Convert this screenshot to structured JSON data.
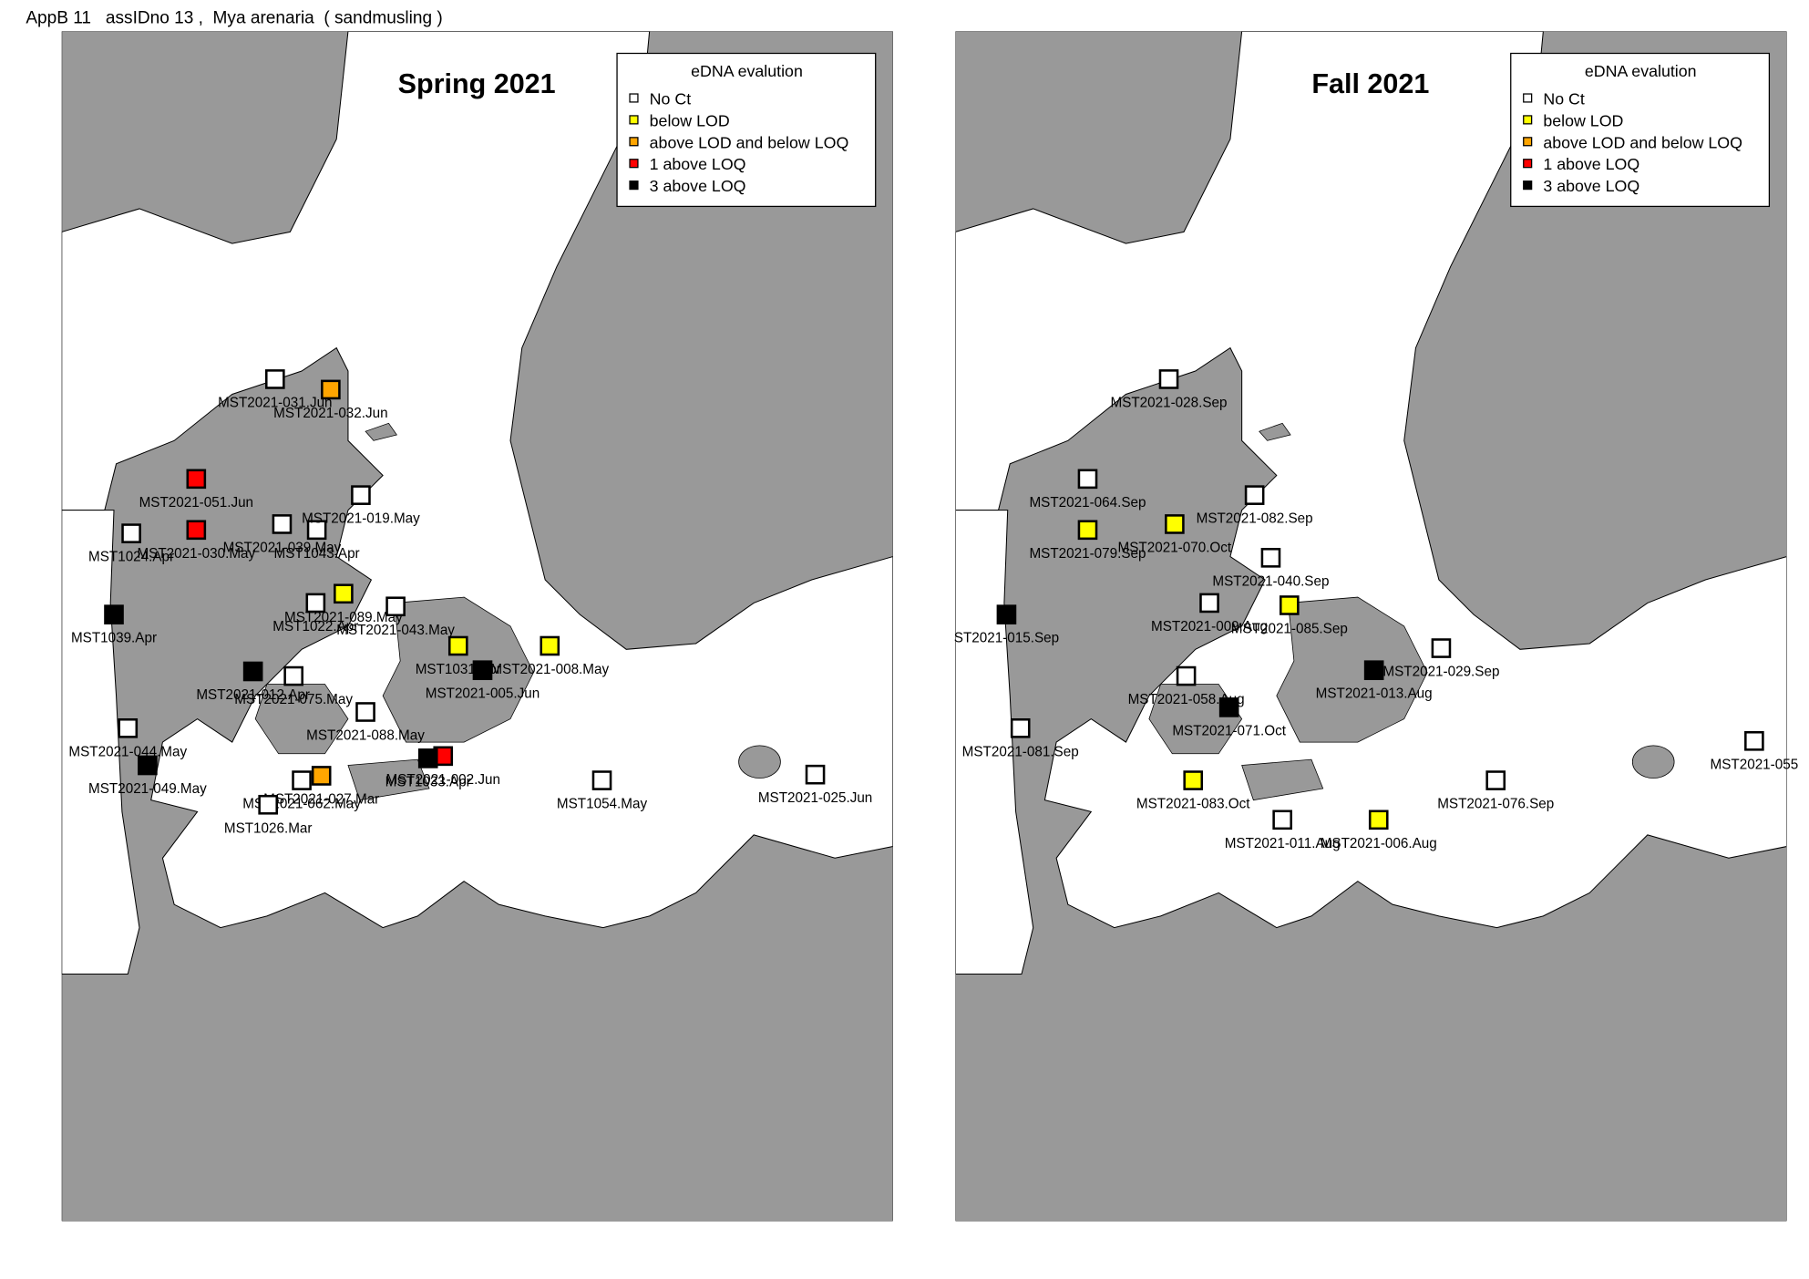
{
  "header": {
    "title": "AppB 11   assIDno 13 ,  Mya arenaria  ( sandmusling )"
  },
  "legend": {
    "title": "eDNA evalution",
    "items": [
      {
        "label": "No Ct",
        "color": "#ffffff"
      },
      {
        "label": "below LOD",
        "color": "#ffff00"
      },
      {
        "label": "above LOD and below LOQ",
        "color": "#ffa500"
      },
      {
        "label": "1 above LOQ",
        "color": "#ff0000"
      },
      {
        "label": "3 above LOQ",
        "color": "#000000"
      }
    ]
  },
  "panels": [
    {
      "title": "Spring 2021",
      "stations": [
        {
          "label": "MST2021-031.Jun",
          "class": "No Ct"
        },
        {
          "label": "MST2021-032.Jun",
          "class": "above LOD and below LOQ"
        },
        {
          "label": "MST2021-051.Jun",
          "class": "1 above LOQ"
        },
        {
          "label": "MST2021-030.May",
          "class": "1 above LOQ"
        },
        {
          "label": "MST1024.Apr",
          "class": "No Ct"
        },
        {
          "label": "MST2021-039.May",
          "class": "No Ct"
        },
        {
          "label": "MST1043.Apr",
          "class": "No Ct"
        },
        {
          "label": "MST2021-019.May",
          "class": "No Ct"
        },
        {
          "label": "MST1039.Apr",
          "class": "3 above LOQ"
        },
        {
          "label": "MST1022.Apr",
          "class": "No Ct"
        },
        {
          "label": "MST2021-089.May",
          "class": "below LOD"
        },
        {
          "label": "MST2021-043.May",
          "class": "No Ct"
        },
        {
          "label": "MST1031.Apr",
          "class": "below LOD"
        },
        {
          "label": "MST2021-008.May",
          "class": "below LOD"
        },
        {
          "label": "MST2021-005.Jun",
          "class": "3 above LOQ"
        },
        {
          "label": "MST2021-012.Apr",
          "class": "3 above LOQ"
        },
        {
          "label": "MST2021-075.May",
          "class": "No Ct"
        },
        {
          "label": "MST2021-088.May",
          "class": "No Ct"
        },
        {
          "label": "MST2021-044.May",
          "class": "No Ct"
        },
        {
          "label": "MST2021-049.May",
          "class": "3 above LOQ"
        },
        {
          "label": "MST2021-002.Jun",
          "class": "1 above LOQ"
        },
        {
          "label": "MST1033.Apr",
          "class": "3 above LOQ"
        },
        {
          "label": "MST2021-027.Mar",
          "class": "above LOD and below LOQ"
        },
        {
          "label": "MST2021-062.May",
          "class": "No Ct"
        },
        {
          "label": "MST1026.Mar",
          "class": "No Ct"
        },
        {
          "label": "MST1054.May",
          "class": "No Ct"
        },
        {
          "label": "MST2021-025.Jun",
          "class": "No Ct"
        }
      ]
    },
    {
      "title": "Fall 2021",
      "stations": [
        {
          "label": "MST2021-028.Sep",
          "class": "No Ct"
        },
        {
          "label": "MST2021-064.Sep",
          "class": "No Ct"
        },
        {
          "label": "MST2021-082.Sep",
          "class": "No Ct"
        },
        {
          "label": "MST2021-079.Sep",
          "class": "below LOD"
        },
        {
          "label": "MST2021-070.Oct",
          "class": "below LOD"
        },
        {
          "label": "MST2021-040.Sep",
          "class": "No Ct"
        },
        {
          "label": "ST2021-015.Sep",
          "class": "3 above LOQ"
        },
        {
          "label": "MST2021-009.Aug",
          "class": "No Ct"
        },
        {
          "label": "MST2021-085.Sep",
          "class": "below LOD"
        },
        {
          "label": "MST2021-029.Sep",
          "class": "No Ct"
        },
        {
          "label": "MST2021-013.Aug",
          "class": "3 above LOQ"
        },
        {
          "label": "MST2021-058.Aug",
          "class": "No Ct"
        },
        {
          "label": "MST2021-071.Oct",
          "class": "3 above LOQ"
        },
        {
          "label": "MST2021-081.Sep",
          "class": "No Ct"
        },
        {
          "label": "MST2021-055",
          "class": "No Ct"
        },
        {
          "label": "MST2021-083.Oct",
          "class": "below LOD"
        },
        {
          "label": "MST2021-076.Sep",
          "class": "No Ct"
        },
        {
          "label": "MST2021-011.Aug",
          "class": "No Ct"
        },
        {
          "label": "MST2021-006.Aug",
          "class": "below LOD"
        }
      ]
    }
  ]
}
